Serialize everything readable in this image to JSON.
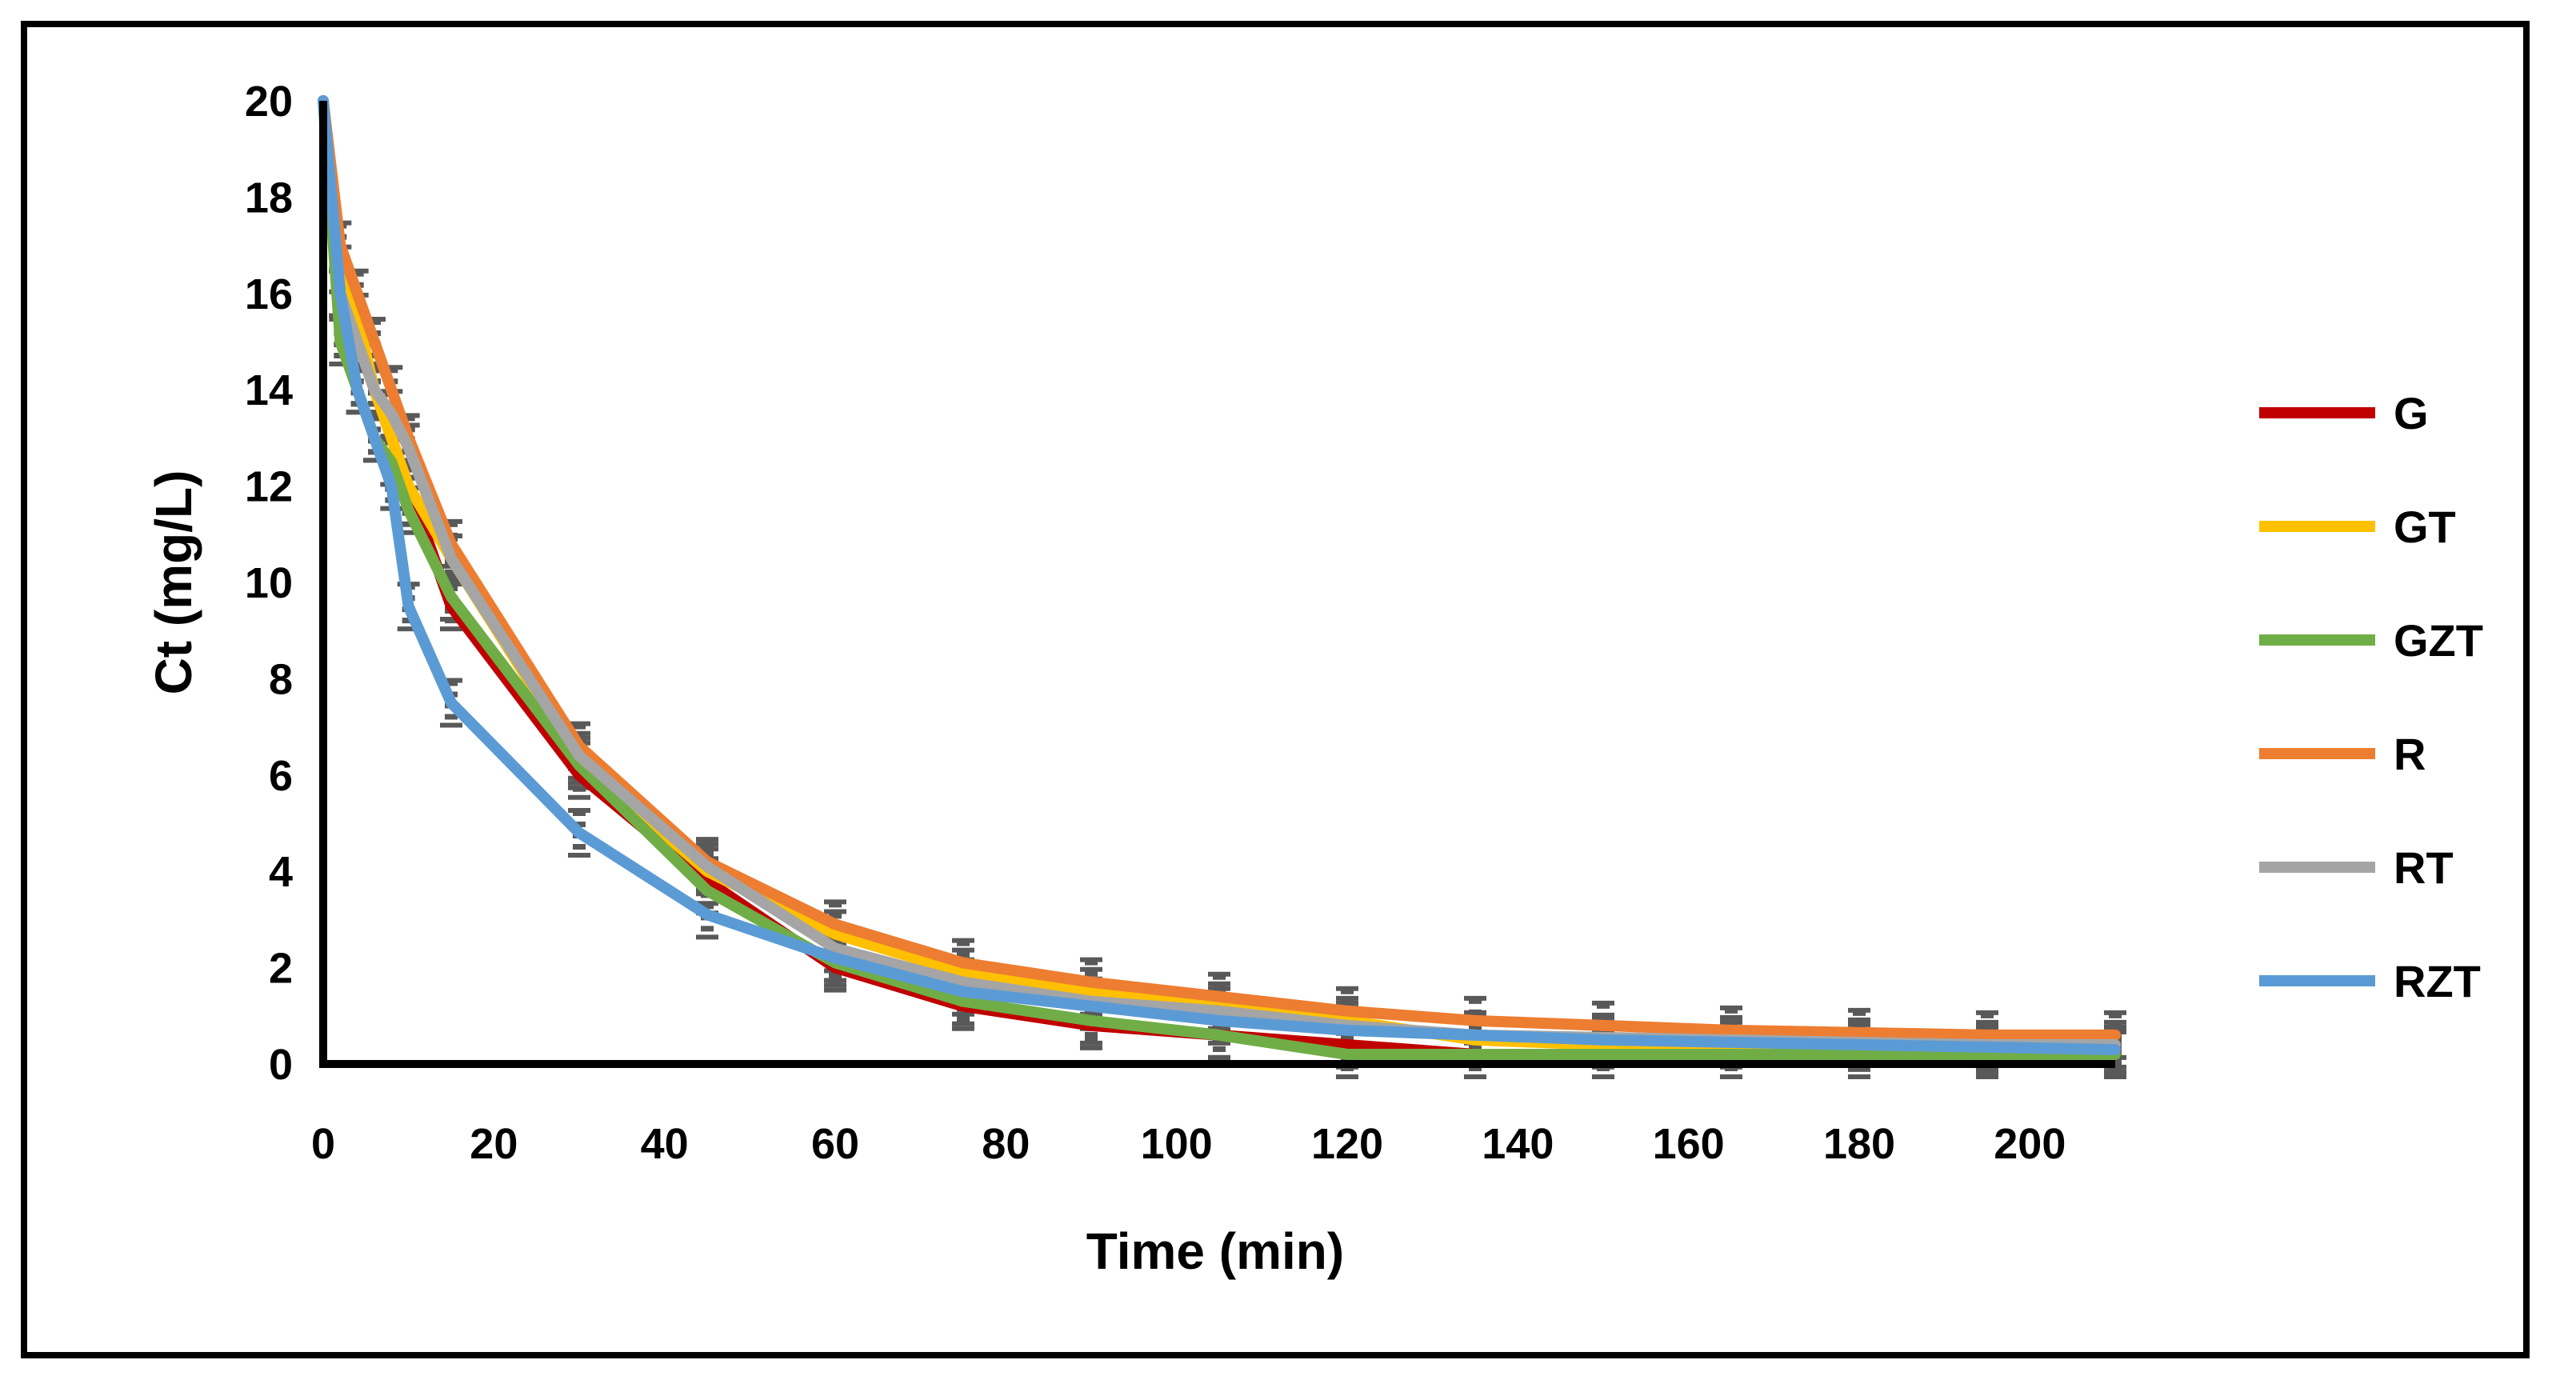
{
  "chart_data": {
    "type": "line",
    "title": "",
    "xlabel": "Time (min)",
    "ylabel": "Ct (mg/L)",
    "xlim": [
      0,
      210
    ],
    "ylim": [
      0,
      20
    ],
    "xticks": [
      0,
      20,
      40,
      60,
      80,
      100,
      120,
      140,
      160,
      180,
      200
    ],
    "yticks": [
      0,
      2,
      4,
      6,
      8,
      10,
      12,
      14,
      16,
      18,
      20
    ],
    "legend_position": "right",
    "error_bar_color": "#595959",
    "x": [
      0,
      2,
      4,
      6,
      8,
      10,
      15,
      30,
      45,
      60,
      75,
      90,
      105,
      120,
      135,
      150,
      165,
      180,
      195,
      210
    ],
    "series": [
      {
        "name": "G",
        "color": "#C00000",
        "values": [
          20,
          16.0,
          15.0,
          14.0,
          13.0,
          12.0,
          9.5,
          6.0,
          3.8,
          2.0,
          1.2,
          0.8,
          0.6,
          0.4,
          0.2,
          0.2,
          0.2,
          0.2,
          0.2,
          0.2
        ]
      },
      {
        "name": "GT",
        "color": "#FFC000",
        "values": [
          20,
          16.5,
          15.5,
          14.0,
          13.0,
          12.0,
          10.5,
          6.3,
          4.0,
          2.7,
          1.9,
          1.5,
          1.2,
          0.9,
          0.5,
          0.4,
          0.4,
          0.35,
          0.3,
          0.3
        ]
      },
      {
        "name": "GZT",
        "color": "#70AD47",
        "values": [
          20,
          15.0,
          14.0,
          13.0,
          12.5,
          11.5,
          9.7,
          6.2,
          3.6,
          2.1,
          1.3,
          0.9,
          0.6,
          0.2,
          0.2,
          0.2,
          0.2,
          0.2,
          0.2,
          0.2
        ]
      },
      {
        "name": "R",
        "color": "#ED7D31",
        "values": [
          20,
          17.0,
          16.0,
          15.0,
          14.0,
          13.0,
          10.8,
          6.6,
          4.2,
          2.9,
          2.1,
          1.7,
          1.4,
          1.1,
          0.9,
          0.8,
          0.7,
          0.65,
          0.6,
          0.6
        ]
      },
      {
        "name": "RT",
        "color": "#A5A5A5",
        "values": [
          20,
          16.0,
          15.0,
          14.0,
          13.5,
          12.8,
          10.5,
          6.4,
          4.1,
          2.4,
          1.7,
          1.3,
          1.1,
          0.8,
          0.6,
          0.55,
          0.5,
          0.45,
          0.4,
          0.4
        ]
      },
      {
        "name": "RZT",
        "color": "#5B9BD5",
        "values": [
          20,
          16.0,
          14.0,
          13.0,
          12.0,
          9.5,
          7.5,
          4.8,
          3.1,
          2.2,
          1.5,
          1.2,
          0.9,
          0.7,
          0.6,
          0.5,
          0.45,
          0.4,
          0.35,
          0.3
        ]
      }
    ]
  }
}
